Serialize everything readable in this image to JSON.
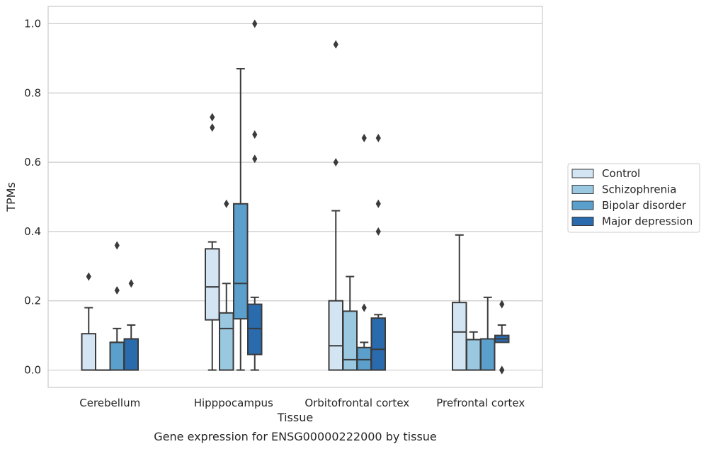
{
  "chart_data": {
    "type": "box",
    "caption": "Gene expression for ENSG00000222000 by tissue",
    "xlabel": "Tissue",
    "ylabel": "TPMs",
    "ylim": [
      -0.05,
      1.05
    ],
    "yticks": [
      0.0,
      0.2,
      0.4,
      0.6,
      0.8,
      1.0
    ],
    "ytick_labels": [
      "0.0",
      "0.2",
      "0.4",
      "0.6",
      "0.8",
      "1.0"
    ],
    "grid": "horizontal",
    "legend_position": "right",
    "categories": [
      "Cerebellum",
      "Hipppocampus",
      "Orbitofrontal cortex",
      "Prefrontal cortex"
    ],
    "series": [
      {
        "name": "Control",
        "color": "#d3e4f3",
        "boxes": [
          {
            "q1": 0.0,
            "median": 0.0,
            "q3": 0.105,
            "whisker_low": 0.0,
            "whisker_high": 0.18,
            "outliers": [
              0.27
            ]
          },
          {
            "q1": 0.145,
            "median": 0.24,
            "q3": 0.35,
            "whisker_low": 0.0,
            "whisker_high": 0.37,
            "outliers": [
              0.7,
              0.73
            ]
          },
          {
            "q1": 0.0,
            "median": 0.07,
            "q3": 0.2,
            "whisker_low": 0.0,
            "whisker_high": 0.46,
            "outliers": [
              0.6,
              0.94
            ]
          },
          {
            "q1": 0.0,
            "median": 0.11,
            "q3": 0.195,
            "whisker_low": 0.0,
            "whisker_high": 0.39,
            "outliers": []
          }
        ]
      },
      {
        "name": "Schizophrenia",
        "color": "#9ac8e0",
        "boxes": [
          {
            "q1": 0.0,
            "median": 0.0,
            "q3": 0.0,
            "whisker_low": 0.0,
            "whisker_high": 0.0,
            "outliers": []
          },
          {
            "q1": 0.0,
            "median": 0.12,
            "q3": 0.165,
            "whisker_low": 0.0,
            "whisker_high": 0.25,
            "outliers": [
              0.48
            ]
          },
          {
            "q1": 0.0,
            "median": 0.03,
            "q3": 0.17,
            "whisker_low": 0.0,
            "whisker_high": 0.27,
            "outliers": []
          },
          {
            "q1": 0.0,
            "median": 0.088,
            "q3": 0.088,
            "whisker_low": 0.0,
            "whisker_high": 0.11,
            "outliers": []
          }
        ]
      },
      {
        "name": "Bipolar disorder",
        "color": "#5b9fcd",
        "boxes": [
          {
            "q1": 0.0,
            "median": 0.08,
            "q3": 0.08,
            "whisker_low": 0.0,
            "whisker_high": 0.12,
            "outliers": [
              0.23,
              0.36
            ]
          },
          {
            "q1": 0.148,
            "median": 0.25,
            "q3": 0.48,
            "whisker_low": 0.0,
            "whisker_high": 0.87,
            "outliers": []
          },
          {
            "q1": 0.0,
            "median": 0.03,
            "q3": 0.065,
            "whisker_low": 0.0,
            "whisker_high": 0.08,
            "outliers": [
              0.18,
              0.67
            ]
          },
          {
            "q1": 0.0,
            "median": 0.09,
            "q3": 0.09,
            "whisker_low": 0.0,
            "whisker_high": 0.21,
            "outliers": []
          }
        ]
      },
      {
        "name": "Major depression",
        "color": "#2a6bad",
        "boxes": [
          {
            "q1": 0.0,
            "median": 0.09,
            "q3": 0.09,
            "whisker_low": 0.0,
            "whisker_high": 0.13,
            "outliers": [
              0.25
            ]
          },
          {
            "q1": 0.045,
            "median": 0.12,
            "q3": 0.19,
            "whisker_low": 0.0,
            "whisker_high": 0.21,
            "outliers": [
              0.61,
              0.68,
              1.0
            ]
          },
          {
            "q1": 0.0,
            "median": 0.06,
            "q3": 0.15,
            "whisker_low": 0.0,
            "whisker_high": 0.16,
            "outliers": [
              0.4,
              0.48,
              0.67
            ]
          },
          {
            "q1": 0.08,
            "median": 0.09,
            "q3": 0.1,
            "whisker_low": 0.08,
            "whisker_high": 0.13,
            "outliers": [
              0.0,
              0.0,
              0.19
            ]
          }
        ]
      }
    ]
  }
}
